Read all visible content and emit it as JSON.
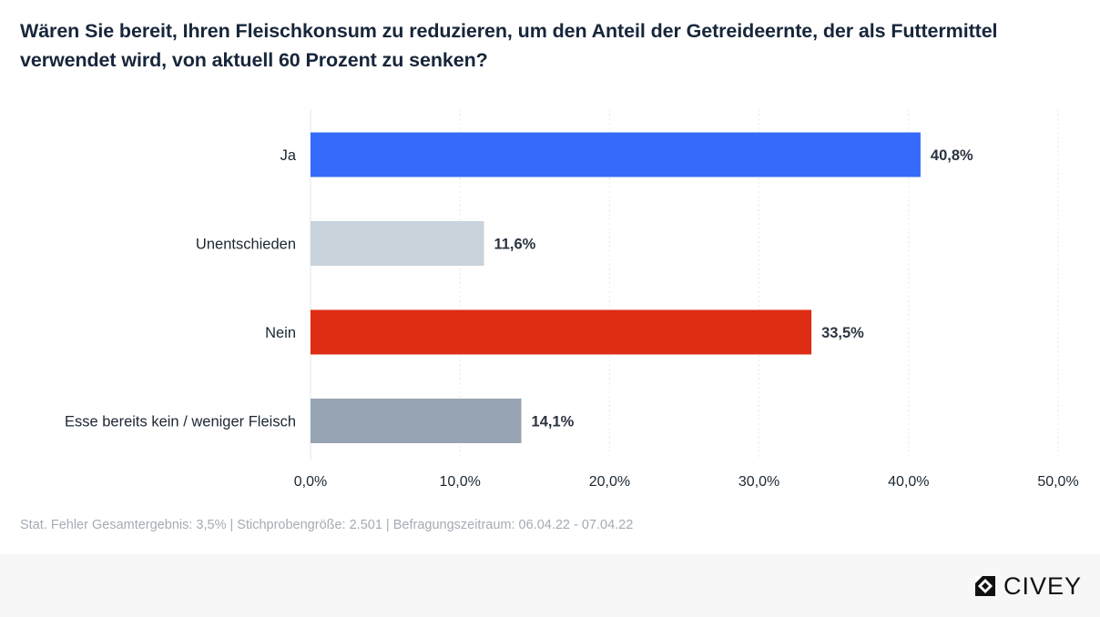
{
  "title_lines": [
    "Wären Sie bereit, Ihren Fleischkonsum zu reduzieren, um den Anteil der Getreideernte, der als Futtermittel",
    "verwendet wird, von aktuell 60 Prozent zu senken?"
  ],
  "chart_data": {
    "type": "bar",
    "orientation": "horizontal",
    "categories": [
      "Ja",
      "Unentschieden",
      "Nein",
      "Esse bereits kein / weniger Fleisch"
    ],
    "values": [
      40.8,
      11.6,
      33.5,
      14.1
    ],
    "value_labels": [
      "40,8%",
      "11,6%",
      "33,5%",
      "14,1%"
    ],
    "colors": [
      "#356bfa",
      "#c8d3dc",
      "#de2d14",
      "#96a5b1"
    ],
    "xlim": [
      0,
      50
    ],
    "xticks": [
      0,
      10,
      20,
      30,
      40,
      50
    ],
    "xtick_labels": [
      "0,0%",
      "10,0%",
      "20,0%",
      "30,0%",
      "40,0%",
      "50,0%"
    ],
    "grid": true
  },
  "footnote": "Stat. Fehler Gesamtergebnis: 3,5% | Stichprobengröße: 2.501 | Befragungszeitraum: 06.04.22 - 07.04.22",
  "logo_text": "CIVEY",
  "logo_icon": "civey-logo-icon"
}
